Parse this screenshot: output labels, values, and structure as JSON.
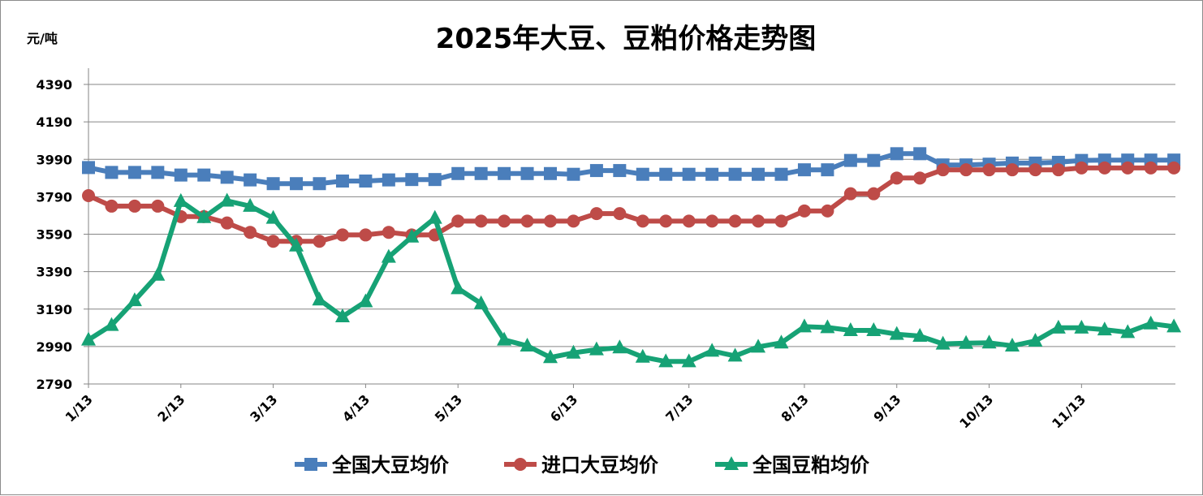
{
  "chart_data": {
    "type": "line",
    "title": "2025年大豆、豆粕价格走势图",
    "ylabel": "元/吨",
    "xlabel": "",
    "ylim": [
      2790,
      4390
    ],
    "yticks": [
      2790,
      2990,
      3190,
      3390,
      3590,
      3790,
      3990,
      4190,
      4390
    ],
    "xtick_labels": [
      "1/13",
      "2/13",
      "3/13",
      "4/13",
      "5/13",
      "6/13",
      "7/13",
      "8/13",
      "9/13",
      "10/13",
      "11/13"
    ],
    "xtick_indices": [
      0,
      4,
      8,
      12,
      16,
      21,
      26,
      31,
      35,
      39,
      43
    ],
    "grid": true,
    "legend_position": "bottom",
    "series": [
      {
        "name": "全国大豆均价",
        "color": "#4a7ebb",
        "marker": "square",
        "values": [
          3946,
          3920,
          3920,
          3920,
          3906,
          3906,
          3894,
          3880,
          3860,
          3860,
          3860,
          3874,
          3874,
          3880,
          3882,
          3882,
          3914,
          3914,
          3914,
          3914,
          3914,
          3910,
          3930,
          3930,
          3910,
          3910,
          3910,
          3910,
          3910,
          3910,
          3910,
          3934,
          3934,
          3984,
          3984,
          4020,
          4020,
          3960,
          3960,
          3964,
          3970,
          3970,
          3974,
          3984,
          3986,
          3986,
          3986,
          3986
        ]
      },
      {
        "name": "进口大豆均价",
        "color": "#be4b48",
        "marker": "circle",
        "values": [
          3796,
          3740,
          3740,
          3740,
          3684,
          3684,
          3650,
          3600,
          3552,
          3552,
          3552,
          3586,
          3586,
          3600,
          3586,
          3586,
          3660,
          3660,
          3660,
          3660,
          3660,
          3660,
          3700,
          3700,
          3660,
          3660,
          3660,
          3660,
          3660,
          3660,
          3660,
          3714,
          3714,
          3806,
          3806,
          3890,
          3890,
          3934,
          3934,
          3934,
          3934,
          3934,
          3934,
          3944,
          3944,
          3944,
          3944,
          3944
        ]
      },
      {
        "name": "全国豆粕均价",
        "color": "#16a275",
        "marker": "triangle",
        "values": [
          3026,
          3104,
          3236,
          3372,
          3766,
          3680,
          3768,
          3740,
          3676,
          3528,
          3240,
          3150,
          3230,
          3468,
          3576,
          3676,
          3300,
          3220,
          3026,
          2994,
          2932,
          2956,
          2974,
          2984,
          2934,
          2910,
          2910,
          2966,
          2940,
          2988,
          3010,
          3096,
          3092,
          3076,
          3076,
          3056,
          3046,
          3004,
          3008,
          3010,
          2994,
          3020,
          3090,
          3090,
          3080,
          3066,
          3112,
          3096
        ]
      }
    ]
  }
}
